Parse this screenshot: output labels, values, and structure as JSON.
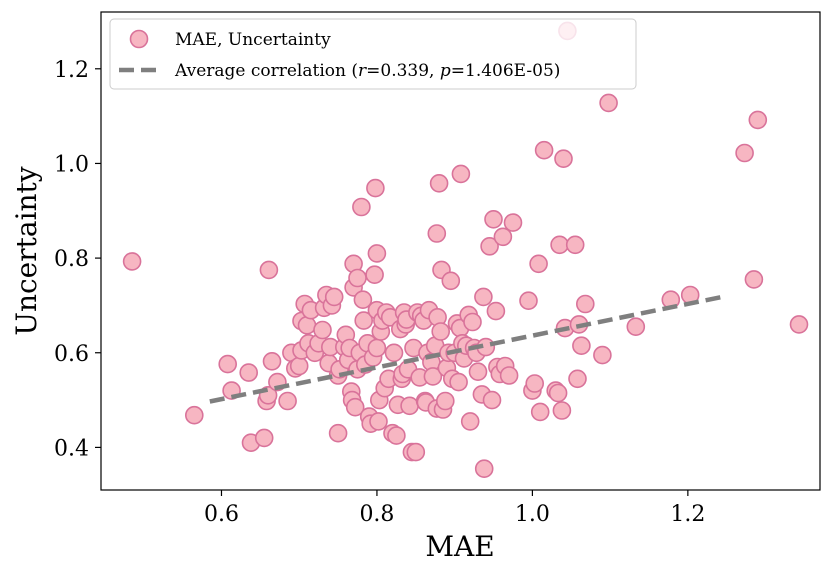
{
  "chart_data": {
    "type": "scatter",
    "xlabel": "MAE",
    "ylabel": "Uncertainty",
    "xlim": [
      0.445,
      1.37
    ],
    "ylim": [
      0.31,
      1.32
    ],
    "xticks": [
      "0.6",
      "0.8",
      "1.0",
      "1.2"
    ],
    "xtick_values": [
      0.6,
      0.8,
      1.0,
      1.2
    ],
    "yticks": [
      "0.4",
      "0.6",
      "0.8",
      "1.0",
      "1.2"
    ],
    "ytick_values": [
      0.4,
      0.6,
      0.8,
      1.0,
      1.2
    ],
    "grid": false,
    "legend_position": "top-left",
    "colors": {
      "marker_fill": "#f7b6c2",
      "marker_edge": "#d9739a",
      "trend_line": "#7f7f7f",
      "legend_border": "#cccccc"
    },
    "legend": {
      "scatter_label": "MAE, Uncertainty",
      "line_prefix": "Average correlation (",
      "r_symbol": "r",
      "r_text": "=0.339, ",
      "p_symbol": "p",
      "p_text": "=1.406E-05)"
    },
    "trend_line": {
      "x": [
        0.585,
        1.25
      ],
      "y": [
        0.497,
        0.72
      ]
    },
    "points": [
      [
        0.485,
        0.793
      ],
      [
        0.565,
        0.468
      ],
      [
        0.608,
        0.576
      ],
      [
        0.613,
        0.52
      ],
      [
        0.635,
        0.558
      ],
      [
        0.638,
        0.41
      ],
      [
        0.655,
        0.42
      ],
      [
        0.658,
        0.498
      ],
      [
        0.66,
        0.51
      ],
      [
        0.661,
        0.775
      ],
      [
        0.665,
        0.582
      ],
      [
        0.672,
        0.538
      ],
      [
        0.685,
        0.498
      ],
      [
        0.69,
        0.6
      ],
      [
        0.695,
        0.567
      ],
      [
        0.7,
        0.572
      ],
      [
        0.703,
        0.605
      ],
      [
        0.703,
        0.667
      ],
      [
        0.707,
        0.703
      ],
      [
        0.71,
        0.658
      ],
      [
        0.712,
        0.62
      ],
      [
        0.715,
        0.69
      ],
      [
        0.72,
        0.6
      ],
      [
        0.725,
        0.62
      ],
      [
        0.73,
        0.648
      ],
      [
        0.732,
        0.695
      ],
      [
        0.735,
        0.722
      ],
      [
        0.738,
        0.578
      ],
      [
        0.74,
        0.612
      ],
      [
        0.742,
        0.7
      ],
      [
        0.745,
        0.718
      ],
      [
        0.75,
        0.552
      ],
      [
        0.75,
        0.43
      ],
      [
        0.752,
        0.565
      ],
      [
        0.758,
        0.612
      ],
      [
        0.76,
        0.638
      ],
      [
        0.763,
        0.585
      ],
      [
        0.765,
        0.61
      ],
      [
        0.767,
        0.518
      ],
      [
        0.768,
        0.5
      ],
      [
        0.77,
        0.738
      ],
      [
        0.77,
        0.788
      ],
      [
        0.772,
        0.485
      ],
      [
        0.775,
        0.758
      ],
      [
        0.775,
        0.565
      ],
      [
        0.778,
        0.6
      ],
      [
        0.78,
        0.908
      ],
      [
        0.782,
        0.712
      ],
      [
        0.783,
        0.668
      ],
      [
        0.785,
        0.575
      ],
      [
        0.788,
        0.62
      ],
      [
        0.79,
        0.465
      ],
      [
        0.792,
        0.45
      ],
      [
        0.795,
        0.59
      ],
      [
        0.797,
        0.765
      ],
      [
        0.798,
        0.948
      ],
      [
        0.8,
        0.81
      ],
      [
        0.8,
        0.69
      ],
      [
        0.8,
        0.61
      ],
      [
        0.802,
        0.455
      ],
      [
        0.803,
        0.5
      ],
      [
        0.805,
        0.645
      ],
      [
        0.807,
        0.668
      ],
      [
        0.81,
        0.525
      ],
      [
        0.812,
        0.685
      ],
      [
        0.815,
        0.545
      ],
      [
        0.817,
        0.675
      ],
      [
        0.82,
        0.43
      ],
      [
        0.822,
        0.6
      ],
      [
        0.825,
        0.425
      ],
      [
        0.827,
        0.49
      ],
      [
        0.83,
        0.65
      ],
      [
        0.832,
        0.545
      ],
      [
        0.833,
        0.555
      ],
      [
        0.835,
        0.685
      ],
      [
        0.837,
        0.66
      ],
      [
        0.838,
        0.67
      ],
      [
        0.84,
        0.565
      ],
      [
        0.842,
        0.488
      ],
      [
        0.845,
        0.39
      ],
      [
        0.847,
        0.61
      ],
      [
        0.85,
        0.39
      ],
      [
        0.852,
        0.685
      ],
      [
        0.855,
        0.548
      ],
      [
        0.857,
        0.678
      ],
      [
        0.86,
        0.668
      ],
      [
        0.862,
        0.498
      ],
      [
        0.863,
        0.495
      ],
      [
        0.865,
        0.6
      ],
      [
        0.867,
        0.69
      ],
      [
        0.87,
        0.58
      ],
      [
        0.872,
        0.55
      ],
      [
        0.875,
        0.615
      ],
      [
        0.877,
        0.482
      ],
      [
        0.877,
        0.852
      ],
      [
        0.878,
        0.675
      ],
      [
        0.88,
        0.958
      ],
      [
        0.882,
        0.645
      ],
      [
        0.883,
        0.775
      ],
      [
        0.885,
        0.48
      ],
      [
        0.888,
        0.498
      ],
      [
        0.89,
        0.568
      ],
      [
        0.892,
        0.6
      ],
      [
        0.895,
        0.752
      ],
      [
        0.897,
        0.545
      ],
      [
        0.9,
        0.6
      ],
      [
        0.903,
        0.662
      ],
      [
        0.905,
        0.538
      ],
      [
        0.907,
        0.652
      ],
      [
        0.908,
        0.978
      ],
      [
        0.91,
        0.62
      ],
      [
        0.912,
        0.588
      ],
      [
        0.915,
        0.615
      ],
      [
        0.918,
        0.68
      ],
      [
        0.92,
        0.455
      ],
      [
        0.923,
        0.665
      ],
      [
        0.925,
        0.61
      ],
      [
        0.928,
        0.6
      ],
      [
        0.93,
        0.56
      ],
      [
        0.935,
        0.512
      ],
      [
        0.937,
        0.718
      ],
      [
        0.938,
        0.355
      ],
      [
        0.94,
        0.612
      ],
      [
        0.945,
        0.825
      ],
      [
        0.948,
        0.5
      ],
      [
        0.95,
        0.882
      ],
      [
        0.953,
        0.688
      ],
      [
        0.955,
        0.57
      ],
      [
        0.958,
        0.555
      ],
      [
        0.962,
        0.845
      ],
      [
        0.965,
        0.572
      ],
      [
        0.97,
        0.552
      ],
      [
        0.975,
        0.875
      ],
      [
        0.995,
        0.71
      ],
      [
        1.0,
        0.52
      ],
      [
        1.003,
        0.535
      ],
      [
        1.008,
        0.788
      ],
      [
        1.01,
        0.475
      ],
      [
        1.015,
        1.028
      ],
      [
        1.03,
        0.52
      ],
      [
        1.033,
        0.515
      ],
      [
        1.035,
        0.828
      ],
      [
        1.038,
        0.478
      ],
      [
        1.04,
        1.01
      ],
      [
        1.042,
        0.652
      ],
      [
        1.045,
        1.28
      ],
      [
        1.055,
        0.828
      ],
      [
        1.058,
        0.545
      ],
      [
        1.06,
        0.66
      ],
      [
        1.063,
        0.615
      ],
      [
        1.068,
        0.703
      ],
      [
        1.09,
        0.595
      ],
      [
        1.098,
        1.128
      ],
      [
        1.133,
        0.655
      ],
      [
        1.178,
        0.712
      ],
      [
        1.203,
        0.722
      ],
      [
        1.273,
        1.022
      ],
      [
        1.285,
        0.755
      ],
      [
        1.29,
        1.092
      ],
      [
        1.343,
        0.66
      ]
    ]
  }
}
